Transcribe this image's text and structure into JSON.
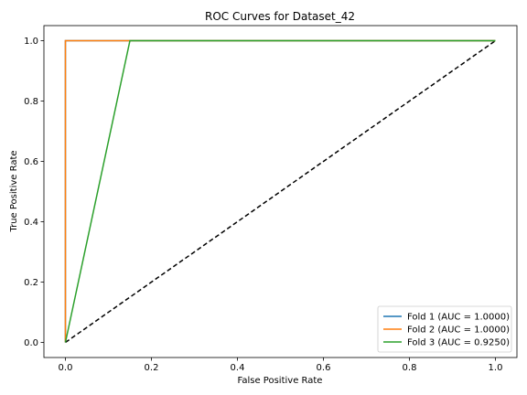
{
  "chart_data": {
    "type": "line",
    "title": "ROC Curves for Dataset_42",
    "xlabel": "False Positive Rate",
    "ylabel": "True Positive Rate",
    "xlim": [
      -0.05,
      1.05
    ],
    "ylim": [
      -0.05,
      1.05
    ],
    "x_ticks": [
      0.0,
      0.2,
      0.4,
      0.6,
      0.8,
      1.0
    ],
    "y_ticks": [
      0.0,
      0.2,
      0.4,
      0.6,
      0.8,
      1.0
    ],
    "x_tick_labels": [
      "0.0",
      "0.2",
      "0.4",
      "0.6",
      "0.8",
      "1.0"
    ],
    "y_tick_labels": [
      "0.0",
      "0.2",
      "0.4",
      "0.6",
      "0.8",
      "1.0"
    ],
    "grid": false,
    "legend_position": "lower-right",
    "series": [
      {
        "name": "Fold 1 (AUC = 1.0000)",
        "color": "#1f77b4",
        "x": [
          0,
          0,
          0.15,
          1.0
        ],
        "y": [
          0,
          1.0,
          1.0,
          1.0
        ]
      },
      {
        "name": "Fold 2 (AUC = 1.0000)",
        "color": "#ff7f0e",
        "x": [
          0,
          0,
          0.15,
          1.0
        ],
        "y": [
          0,
          1.0,
          1.0,
          1.0
        ]
      },
      {
        "name": "Fold 3 (AUC = 0.9250)",
        "color": "#2ca02c",
        "x": [
          0,
          0.15,
          1.0
        ],
        "y": [
          0,
          1.0,
          1.0
        ]
      }
    ],
    "reference_line": {
      "color": "#000000",
      "style": "dashed",
      "x": [
        0,
        1
      ],
      "y": [
        0,
        1
      ]
    }
  }
}
